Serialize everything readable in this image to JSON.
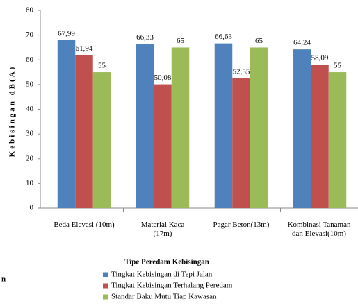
{
  "chart_data": {
    "type": "bar",
    "y_label": "Kebisingan dB(A)",
    "x_label": "Tipe Peredam Kebisingan",
    "annotation": "n",
    "categories": [
      "Beda Elevasi (10m)",
      "Material Kaca\n(17m)",
      "Pagar Beton(13m)",
      "Kombinasi Tanaman\ndan Elevasi(10m)"
    ],
    "series": [
      {
        "name": "Tingkat Kebisingan di Tepi Jalan",
        "color": "#4f81bd",
        "values": [
          67.99,
          66.33,
          66.63,
          64.24
        ],
        "value_labels": [
          "67,99",
          "66,33",
          "66,63",
          "64,24"
        ]
      },
      {
        "name": "Tingkat Kebisingan Terhalang Peredam",
        "color": "#c0504d",
        "values": [
          61.94,
          50.08,
          52.55,
          58.09
        ],
        "value_labels": [
          "61,94",
          "50,08",
          "52,55",
          "58,09"
        ]
      },
      {
        "name": "Standar Baku Mutu Tiap Kawasan",
        "color": "#9bbb59",
        "values": [
          55,
          65,
          65,
          55
        ],
        "value_labels": [
          "55",
          "65",
          "65",
          "55"
        ]
      }
    ],
    "ylim": [
      0,
      80
    ],
    "yticks": [
      0,
      10,
      20,
      30,
      40,
      50,
      60,
      70,
      80
    ],
    "legend": "bottom"
  }
}
